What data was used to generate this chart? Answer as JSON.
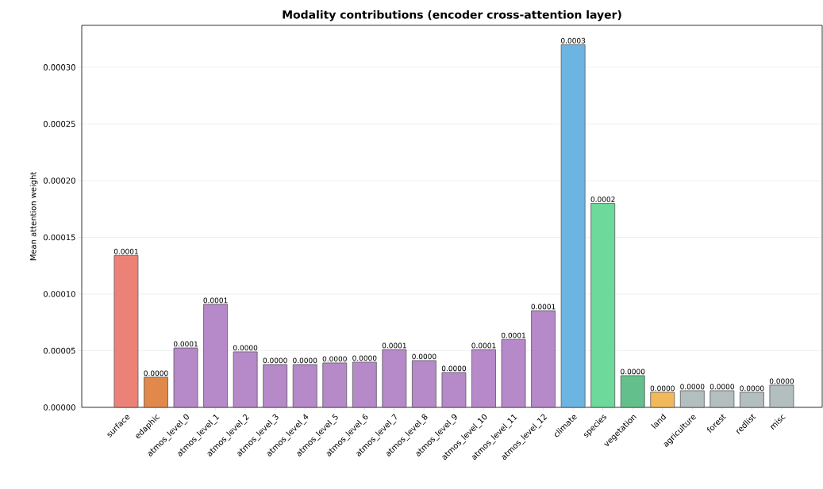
{
  "chart_data": {
    "type": "bar",
    "title": "Modality contributions (encoder cross-attention layer)",
    "ylabel": "Mean attention weight",
    "categories": [
      "surface",
      "edaphic",
      "atmos_level_0",
      "atmos_level_1",
      "atmos_level_2",
      "atmos_level_3",
      "atmos_level_4",
      "atmos_level_5",
      "atmos_level_6",
      "atmos_level_7",
      "atmos_level_8",
      "atmos_level_9",
      "atmos_level_10",
      "atmos_level_11",
      "atmos_level_12",
      "climate",
      "species",
      "vegetation",
      "land",
      "agriculture",
      "forest",
      "redlist",
      "misc"
    ],
    "values": [
      0.000134,
      2.66e-05,
      5.24e-05,
      9.09e-05,
      4.9e-05,
      3.78e-05,
      3.78e-05,
      3.92e-05,
      3.99e-05,
      5.1e-05,
      4.13e-05,
      3.08e-05,
      5.1e-05,
      6e-05,
      8.53e-05,
      0.00032,
      0.00018,
      2.8e-05,
      1.33e-05,
      1.47e-05,
      1.47e-05,
      1.33e-05,
      1.96e-05
    ],
    "colors": [
      "#ec8277",
      "#e0894a",
      "#b689c9",
      "#b689c9",
      "#b689c9",
      "#b689c9",
      "#b689c9",
      "#b689c9",
      "#b689c9",
      "#b689c9",
      "#b689c9",
      "#b689c9",
      "#b689c9",
      "#b689c9",
      "#b689c9",
      "#6cb4e2",
      "#6dd99b",
      "#63c08c",
      "#f2b95a",
      "#b3bfbf",
      "#b3bfbf",
      "#b3bfbf",
      "#b3bfbf"
    ],
    "value_labels": [
      "0.0001",
      "0.0000",
      "0.0001",
      "0.0001",
      "0.0000",
      "0.0000",
      "0.0000",
      "0.0000",
      "0.0000",
      "0.0001",
      "0.0000",
      "0.0000",
      "0.0001",
      "0.0001",
      "0.0001",
      "0.0003",
      "0.0002",
      "0.0000",
      "0.0000",
      "0.0000",
      "0.0000",
      "0.0000",
      "0.0000"
    ],
    "ylim": [
      0,
      0.000337
    ],
    "yticks": [
      {
        "value": 0,
        "label": "0.00000"
      },
      {
        "value": 5e-05,
        "label": "0.00005"
      },
      {
        "value": 0.0001,
        "label": "0.00010"
      },
      {
        "value": 0.00015,
        "label": "0.00015"
      },
      {
        "value": 0.0002,
        "label": "0.00020"
      },
      {
        "value": 0.00025,
        "label": "0.00025"
      },
      {
        "value": 0.0003,
        "label": "0.00030"
      }
    ],
    "grid": "y"
  }
}
